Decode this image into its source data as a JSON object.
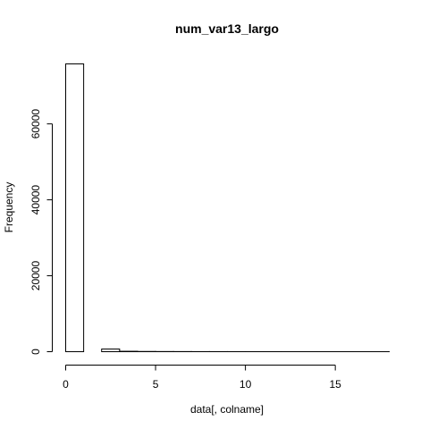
{
  "chart_data": {
    "type": "bar",
    "title": "num_var13_largo",
    "xlabel": "data[, colname]",
    "ylabel": "Frequency",
    "bins": [
      {
        "start": 0,
        "end": 1,
        "count": 75800
      },
      {
        "start": 1,
        "end": 2,
        "count": 0
      },
      {
        "start": 2,
        "end": 3,
        "count": 700
      },
      {
        "start": 3,
        "end": 4,
        "count": 110
      },
      {
        "start": 4,
        "end": 5,
        "count": 60
      },
      {
        "start": 5,
        "end": 6,
        "count": 40
      },
      {
        "start": 6,
        "end": 7,
        "count": 30
      },
      {
        "start": 7,
        "end": 8,
        "count": 20
      },
      {
        "start": 8,
        "end": 9,
        "count": 15
      },
      {
        "start": 9,
        "end": 10,
        "count": 10
      },
      {
        "start": 10,
        "end": 11,
        "count": 8
      },
      {
        "start": 11,
        "end": 12,
        "count": 6
      },
      {
        "start": 12,
        "end": 13,
        "count": 5
      },
      {
        "start": 13,
        "end": 14,
        "count": 4
      },
      {
        "start": 14,
        "end": 15,
        "count": 3
      },
      {
        "start": 15,
        "end": 16,
        "count": 2
      },
      {
        "start": 16,
        "end": 17,
        "count": 1
      },
      {
        "start": 17,
        "end": 18,
        "count": 1
      }
    ],
    "xlim": [
      0,
      18
    ],
    "ylim": [
      0,
      75800
    ],
    "xticks": [
      0,
      5,
      10,
      15
    ],
    "yticks": [
      0,
      20000,
      40000,
      60000
    ],
    "grid": false
  }
}
